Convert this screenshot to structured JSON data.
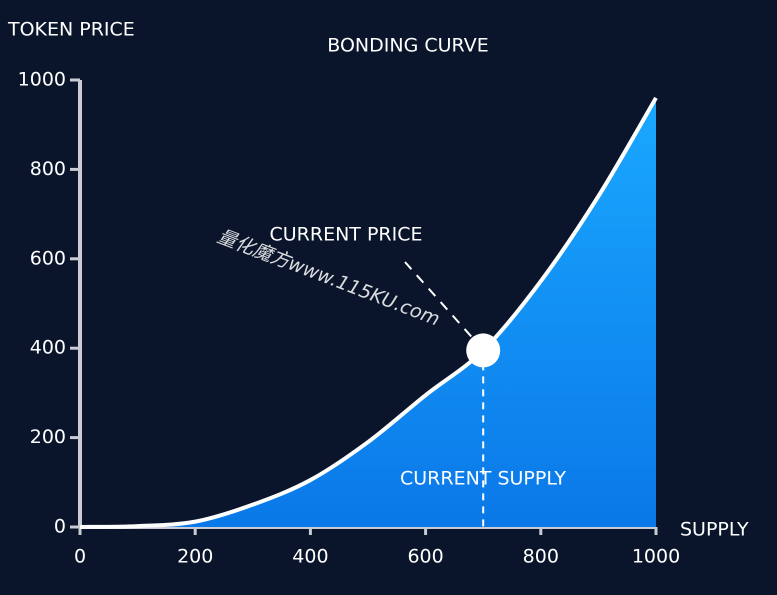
{
  "chart_data": {
    "type": "area",
    "title": "BONDING CURVE",
    "y_label": "TOKEN PRICE",
    "x_label": "SUPPLY",
    "x": [
      0,
      100,
      200,
      300,
      400,
      500,
      600,
      700,
      800,
      900,
      1000
    ],
    "values": [
      0,
      2,
      12,
      50,
      105,
      190,
      295,
      395,
      550,
      740,
      960
    ],
    "color": "#ffffff",
    "fill_color": "#1a9cff",
    "xlim": [
      0,
      1000
    ],
    "ylim": [
      0,
      1000
    ],
    "xticks": [
      0,
      200,
      400,
      600,
      800,
      1000
    ],
    "yticks": [
      0,
      200,
      400,
      600,
      800,
      1000
    ],
    "current": {
      "x": 700,
      "y": 395,
      "price_label": "CURRENT PRICE",
      "supply_label": "CURRENT SUPPLY"
    },
    "watermark": "量化魔方www.115KU.com"
  }
}
